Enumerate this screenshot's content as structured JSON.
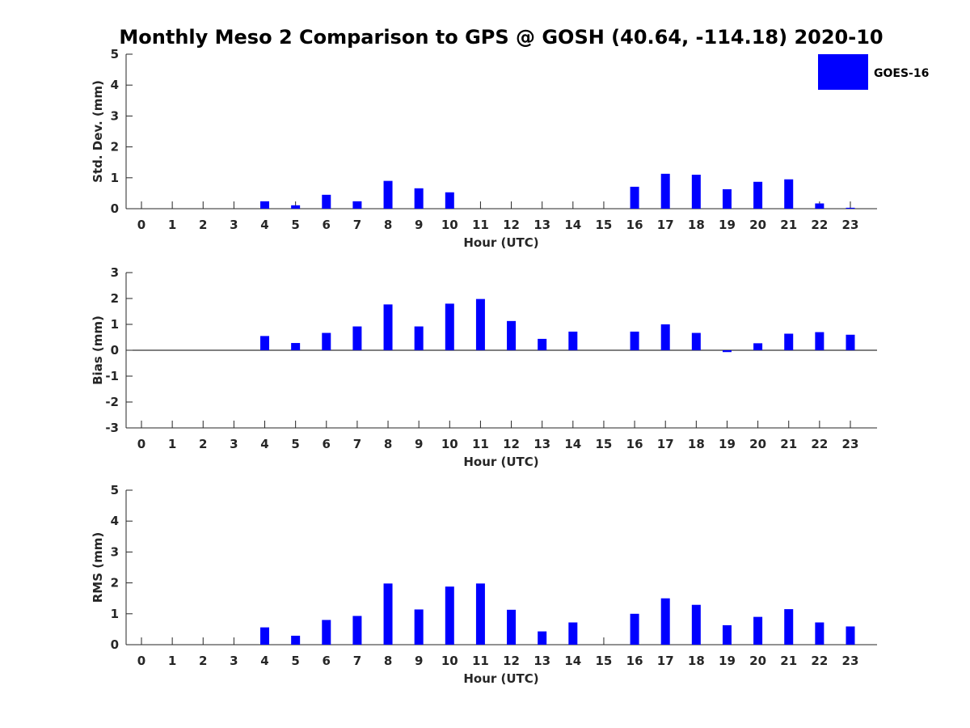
{
  "chart_data": [
    {
      "type": "bar",
      "title": "Monthly Meso 2 Comparison to GPS @ GOSH (40.64, -114.18) 2020-10",
      "xlabel": "Hour (UTC)",
      "ylabel": "Std. Dev. (mm)",
      "ylim": [
        0,
        5
      ],
      "yticks": [
        "0",
        "1",
        "2",
        "3",
        "4",
        "5"
      ],
      "categories": [
        "0",
        "1",
        "2",
        "3",
        "4",
        "5",
        "6",
        "7",
        "8",
        "9",
        "10",
        "11",
        "12",
        "13",
        "14",
        "15",
        "16",
        "17",
        "18",
        "19",
        "20",
        "21",
        "22",
        "23"
      ],
      "series": [
        {
          "name": "GOES-16",
          "color": "#0000ff",
          "values": [
            null,
            null,
            null,
            null,
            0.24,
            0.11,
            0.45,
            0.24,
            0.9,
            0.66,
            0.53,
            null,
            null,
            null,
            null,
            null,
            0.71,
            1.13,
            1.1,
            0.63,
            0.87,
            0.95,
            0.17,
            0.03
          ]
        }
      ],
      "legend": {
        "placement": "top-right",
        "entries": [
          "GOES-16"
        ]
      },
      "grid": false
    },
    {
      "type": "bar",
      "xlabel": "Hour (UTC)",
      "ylabel": "Bias (mm)",
      "ylim": [
        -3,
        3
      ],
      "yticks": [
        "-3",
        "-2",
        "-1",
        "0",
        "1",
        "2",
        "3"
      ],
      "categories": [
        "0",
        "1",
        "2",
        "3",
        "4",
        "5",
        "6",
        "7",
        "8",
        "9",
        "10",
        "11",
        "12",
        "13",
        "14",
        "15",
        "16",
        "17",
        "18",
        "19",
        "20",
        "21",
        "22",
        "23"
      ],
      "series": [
        {
          "name": "GOES-16",
          "color": "#0000ff",
          "values": [
            null,
            null,
            null,
            null,
            0.55,
            0.28,
            0.67,
            0.92,
            1.77,
            0.92,
            1.8,
            1.98,
            1.13,
            0.44,
            0.72,
            null,
            0.72,
            1.0,
            0.67,
            -0.07,
            0.27,
            0.64,
            0.7,
            0.6
          ]
        }
      ],
      "grid": false
    },
    {
      "type": "bar",
      "xlabel": "Hour (UTC)",
      "ylabel": "RMS (mm)",
      "ylim": [
        0,
        5
      ],
      "yticks": [
        "0",
        "1",
        "2",
        "3",
        "4",
        "5"
      ],
      "categories": [
        "0",
        "1",
        "2",
        "3",
        "4",
        "5",
        "6",
        "7",
        "8",
        "9",
        "10",
        "11",
        "12",
        "13",
        "14",
        "15",
        "16",
        "17",
        "18",
        "19",
        "20",
        "21",
        "22",
        "23"
      ],
      "series": [
        {
          "name": "GOES-16",
          "color": "#0000ff",
          "values": [
            null,
            null,
            null,
            null,
            0.56,
            0.29,
            0.8,
            0.93,
            1.98,
            1.14,
            1.88,
            1.98,
            1.13,
            0.43,
            0.72,
            null,
            1.0,
            1.5,
            1.29,
            0.63,
            0.9,
            1.15,
            0.72,
            0.59
          ]
        }
      ],
      "grid": false
    }
  ]
}
